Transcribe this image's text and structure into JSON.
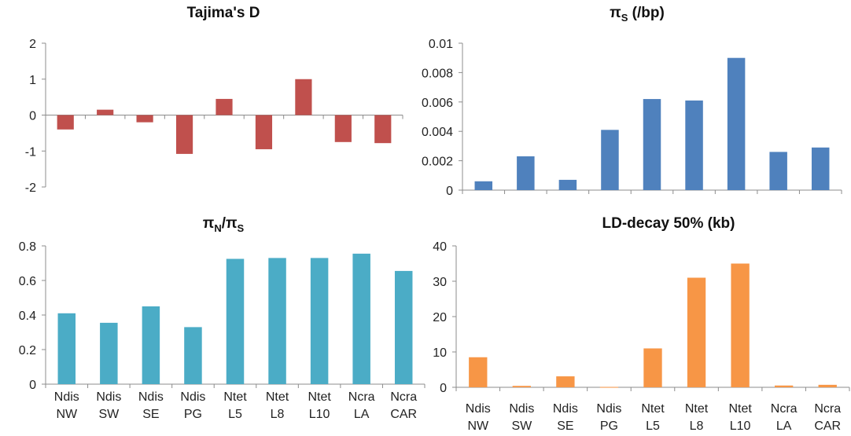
{
  "categories": [
    [
      "Ndis",
      "NW"
    ],
    [
      "Ndis",
      "SW"
    ],
    [
      "Ndis",
      "SE"
    ],
    [
      "Ndis",
      "PG"
    ],
    [
      "Ntet",
      "L5"
    ],
    [
      "Ntet",
      "L8"
    ],
    [
      "Ntet",
      "L10"
    ],
    [
      "Ncra",
      "LA"
    ],
    [
      "Ncra",
      "CAR"
    ]
  ],
  "chart_data": [
    {
      "id": "tajima",
      "type": "bar",
      "title": "Tajima's D",
      "categories": [
        "Ndis NW",
        "Ndis SW",
        "Ndis SE",
        "Ndis PG",
        "Ntet L5",
        "Ntet L8",
        "Ntet L10",
        "Ncra LA",
        "Ncra CAR"
      ],
      "values": [
        -0.4,
        0.15,
        -0.2,
        -1.08,
        0.45,
        -0.95,
        1.0,
        -0.75,
        -0.78
      ],
      "ylim": [
        -2,
        2
      ],
      "ticks": [
        2,
        1,
        0,
        -1,
        -2
      ],
      "tick_labels": [
        "2",
        "1",
        "0",
        "-1",
        "-2"
      ],
      "color": "#c0504d",
      "grid": false
    },
    {
      "id": "pis",
      "type": "bar",
      "title": "πS (/bp)",
      "title_parts": {
        "main": "π",
        "sub": "S",
        "rest": " (/bp)"
      },
      "categories": [
        "Ndis NW",
        "Ndis SW",
        "Ndis SE",
        "Ndis PG",
        "Ntet L5",
        "Ntet L8",
        "Ntet L10",
        "Ncra LA",
        "Ncra CAR"
      ],
      "values": [
        0.0006,
        0.0023,
        0.0007,
        0.0041,
        0.0062,
        0.0061,
        0.009,
        0.0026,
        0.0029
      ],
      "ylim": [
        0,
        0.01
      ],
      "ticks": [
        0.01,
        0.008,
        0.006,
        0.004,
        0.002,
        0
      ],
      "tick_labels": [
        "0.01",
        "0.008",
        "0.006",
        "0.004",
        "0.002",
        "0"
      ],
      "color": "#4f81bd",
      "grid": false
    },
    {
      "id": "pinpis",
      "type": "bar",
      "title": "πN/πS",
      "title_parts": {
        "a": "π",
        "a_sub": "N",
        "mid": "/",
        "b": "π",
        "b_sub": "S"
      },
      "categories": [
        "Ndis NW",
        "Ndis SW",
        "Ndis SE",
        "Ndis PG",
        "Ntet L5",
        "Ntet L8",
        "Ntet L10",
        "Ncra LA",
        "Ncra CAR"
      ],
      "values": [
        0.41,
        0.355,
        0.45,
        0.33,
        0.725,
        0.73,
        0.73,
        0.755,
        0.655
      ],
      "ylim": [
        0,
        0.8
      ],
      "ticks": [
        0.8,
        0.6,
        0.4,
        0.2,
        0
      ],
      "tick_labels": [
        "0.8",
        "0.6",
        "0.4",
        "0.2",
        "0"
      ],
      "color": "#4bacc6",
      "grid": false
    },
    {
      "id": "ld",
      "type": "bar",
      "title": "LD-decay 50% (kb)",
      "categories": [
        "Ndis NW",
        "Ndis SW",
        "Ndis SE",
        "Ndis PG",
        "Ntet L5",
        "Ntet L8",
        "Ntet L10",
        "Ncra LA",
        "Ncra CAR"
      ],
      "values": [
        8.5,
        0.4,
        3.1,
        0.1,
        11,
        31,
        35,
        0.5,
        0.7
      ],
      "ylim": [
        0,
        40
      ],
      "ticks": [
        40,
        30,
        20,
        10,
        0
      ],
      "tick_labels": [
        "40",
        "30",
        "20",
        "10",
        "0"
      ],
      "color": "#f79646",
      "grid": false
    }
  ]
}
